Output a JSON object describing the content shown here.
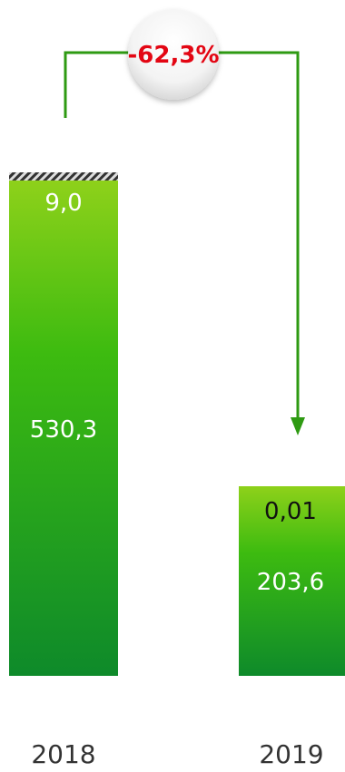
{
  "chart_data": {
    "type": "bar",
    "stacked": true,
    "categories": [
      "2018",
      "2019"
    ],
    "series": [
      {
        "values": [
          530.3,
          203.6
        ]
      },
      {
        "values": [
          9.0,
          0.01
        ]
      }
    ],
    "labels": {
      "bottom": [
        "530,3",
        "203,6"
      ],
      "top": [
        "9,0",
        "0,01"
      ]
    },
    "change_annotation": "-62,3%",
    "colors": {
      "bar_top": "#8ed11a",
      "bar_mid": "#35b80f",
      "bar_bottom": "#0e8a2a",
      "arrow": "#2e9a12",
      "change_text": "#e30613",
      "hatch": "#333333"
    }
  }
}
